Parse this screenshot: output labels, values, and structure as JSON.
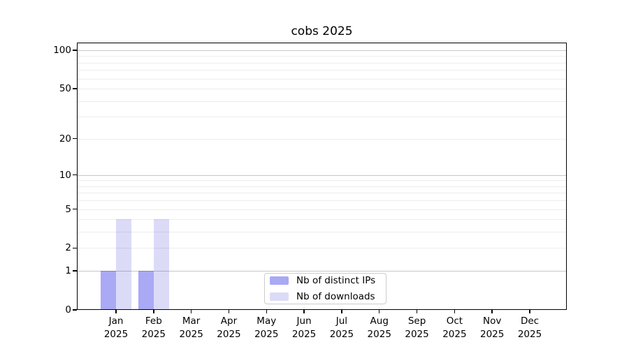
{
  "figure": {
    "title": "cobs 2025"
  },
  "chart_data": {
    "type": "bar",
    "title": "cobs 2025",
    "months": [
      "Jan",
      "Feb",
      "Mar",
      "Apr",
      "May",
      "Jun",
      "Jul",
      "Aug",
      "Sep",
      "Oct",
      "Nov",
      "Dec"
    ],
    "year": "2025",
    "categories": [
      "Jan 2025",
      "Feb 2025",
      "Mar 2025",
      "Apr 2025",
      "May 2025",
      "Jun 2025",
      "Jul 2025",
      "Aug 2025",
      "Sep 2025",
      "Oct 2025",
      "Nov 2025",
      "Dec 2025"
    ],
    "series": [
      {
        "name": "Nb of distinct IPs",
        "color": "#a9a9f5",
        "values": [
          1,
          1,
          0,
          0,
          0,
          0,
          0,
          0,
          0,
          0,
          0,
          0
        ]
      },
      {
        "name": "Nb of downloads",
        "color": "#dbdbf8",
        "values": [
          4,
          4,
          0,
          0,
          0,
          0,
          0,
          0,
          0,
          0,
          0,
          0
        ]
      }
    ],
    "yscale": "log10(1+y)",
    "ylim": [
      0,
      100
    ],
    "yticks": [
      0,
      1,
      2,
      5,
      10,
      20,
      50,
      100
    ],
    "major_gridlines": [
      1,
      10,
      100
    ],
    "minor_gridlines": [
      2,
      3,
      4,
      5,
      6,
      7,
      8,
      9,
      20,
      30,
      40,
      50,
      60,
      70,
      80,
      90
    ],
    "grid": "horizontal",
    "legend_position": "lower center inside"
  },
  "colors": {
    "bar_distinct_ips": "#a9a9f5",
    "bar_downloads": "#dbdbf8",
    "grid_major": "rgba(0,0,0,0.22)",
    "grid_minor": "rgba(0,0,0,0.07)",
    "axis": "#000000",
    "legend_border": "#cccccc",
    "background": "#ffffff",
    "text": "#000000"
  }
}
